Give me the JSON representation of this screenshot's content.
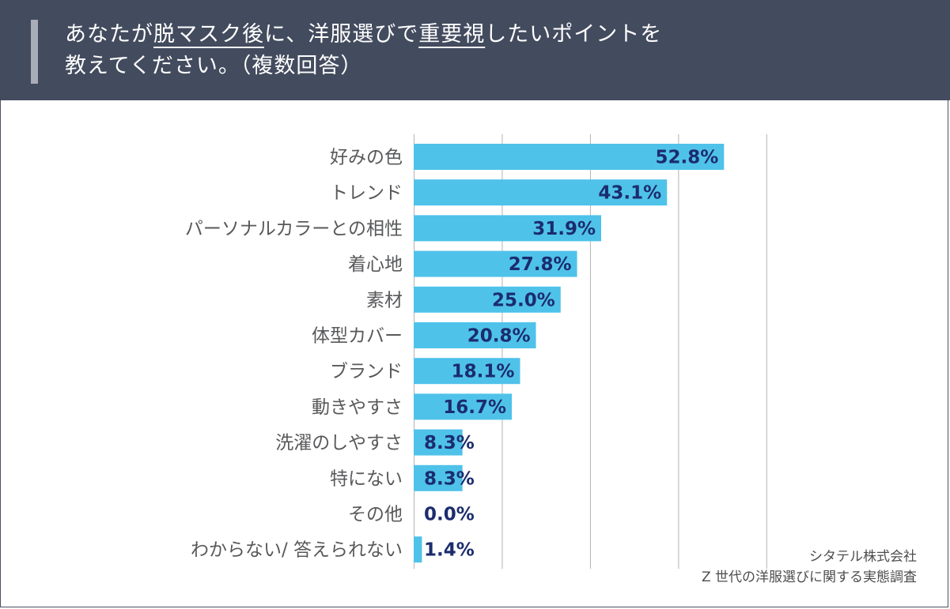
{
  "header": {
    "line1_a": "あなたが",
    "line1_b": "脱マスク後",
    "line1_c": "に、洋服選びで",
    "line1_d": "重要視",
    "line1_e": "したいポイントを",
    "line2": "教えてください。（複数回答）"
  },
  "source": {
    "line1": "シタテル株式会社",
    "line2": "Z 世代の洋服選びに関する実態調査"
  },
  "colors": {
    "bar": "#4fc2ea",
    "grid": "#b3b3b3",
    "value_text": "#1b2c6e",
    "label_text": "#58595b",
    "header_bg": "#434b5e"
  },
  "chart_data": {
    "type": "bar",
    "orientation": "horizontal",
    "title": "あなたが脱マスク後に、洋服選びで重要視したいポイントを教えてください。（複数回答）",
    "xlim": [
      0,
      60
    ],
    "grid": true,
    "categories": [
      "好みの色",
      "トレンド",
      "パーソナルカラーとの相性",
      "着心地",
      "素材",
      "体型カバー",
      "ブランド",
      "動きやすさ",
      "洗濯のしやすさ",
      "特にない",
      "その他",
      "わからない/ 答えられない"
    ],
    "values": [
      52.8,
      43.1,
      31.9,
      27.8,
      25.0,
      20.8,
      18.1,
      16.7,
      8.3,
      8.3,
      0.0,
      1.4
    ],
    "value_labels": [
      "52.8%",
      "43.1%",
      "31.9%",
      "27.8%",
      "25.0%",
      "20.8%",
      "18.1%",
      "16.7%",
      "8.3%",
      "8.3%",
      "0.0%",
      "1.4%"
    ]
  }
}
